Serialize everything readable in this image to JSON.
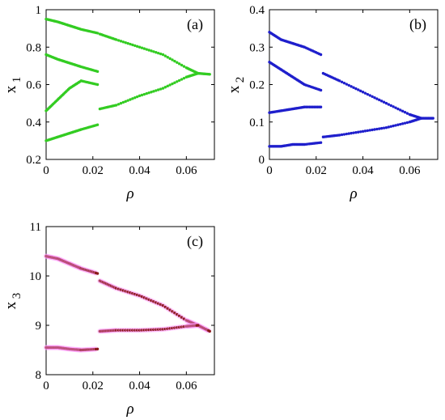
{
  "chart_data": [
    {
      "type": "scatter",
      "panel": "(a)",
      "xlabel": "ρ",
      "ylabel_main": "x",
      "ylabel_sub": "1",
      "xlim": [
        0,
        0.072
      ],
      "ylim": [
        0.2,
        1.0
      ],
      "xticks": [
        0,
        0.02,
        0.04,
        0.06
      ],
      "xtick_labels": [
        "0",
        "0.02",
        "0.04",
        "0.06"
      ],
      "yticks": [
        0.2,
        0.4,
        0.6,
        0.8,
        1.0
      ],
      "ytick_labels": [
        "0.2",
        "0.4",
        "0.6",
        "0.8",
        "1"
      ],
      "color": "#33cc22",
      "branches": {
        "period_regime_upper": [
          [
            0.0,
            0.95
          ],
          [
            0.005,
            0.935
          ],
          [
            0.01,
            0.915
          ],
          [
            0.015,
            0.895
          ],
          [
            0.022,
            0.875
          ]
        ],
        "period_regime_mid": [
          [
            0.0,
            0.76
          ],
          [
            0.005,
            0.735
          ],
          [
            0.01,
            0.715
          ],
          [
            0.015,
            0.695
          ],
          [
            0.022,
            0.67
          ]
        ],
        "period_regime_lower": [
          [
            0.0,
            0.3
          ],
          [
            0.005,
            0.32
          ],
          [
            0.01,
            0.34
          ],
          [
            0.015,
            0.36
          ],
          [
            0.022,
            0.385
          ]
        ],
        "cluster_1": [
          [
            0.0,
            0.46
          ],
          [
            0.005,
            0.52
          ],
          [
            0.01,
            0.58
          ],
          [
            0.015,
            0.62
          ],
          [
            0.022,
            0.6
          ]
        ],
        "main_upper": [
          [
            0.023,
            0.87
          ],
          [
            0.03,
            0.84
          ],
          [
            0.04,
            0.8
          ],
          [
            0.05,
            0.76
          ],
          [
            0.06,
            0.69
          ],
          [
            0.065,
            0.66
          ],
          [
            0.07,
            0.655
          ]
        ],
        "main_lower": [
          [
            0.023,
            0.47
          ],
          [
            0.03,
            0.49
          ],
          [
            0.04,
            0.54
          ],
          [
            0.05,
            0.58
          ],
          [
            0.06,
            0.64
          ],
          [
            0.065,
            0.66
          ]
        ]
      }
    },
    {
      "type": "scatter",
      "panel": "(b)",
      "xlabel": "ρ",
      "ylabel_main": "x",
      "ylabel_sub": "2",
      "xlim": [
        0,
        0.072
      ],
      "ylim": [
        0,
        0.4
      ],
      "xticks": [
        0,
        0.02,
        0.04,
        0.06
      ],
      "xtick_labels": [
        "0",
        "0.02",
        "0.04",
        "0.06"
      ],
      "yticks": [
        0,
        0.1,
        0.2,
        0.3,
        0.4
      ],
      "ytick_labels": [
        "0",
        "0.1",
        "0.2",
        "0.3",
        "0.4"
      ],
      "color": "#1f1fcc",
      "branches": {
        "band_a": [
          [
            0.0,
            0.34
          ],
          [
            0.005,
            0.32
          ],
          [
            0.01,
            0.31
          ],
          [
            0.015,
            0.3
          ],
          [
            0.022,
            0.28
          ]
        ],
        "band_b": [
          [
            0.0,
            0.26
          ],
          [
            0.005,
            0.24
          ],
          [
            0.01,
            0.22
          ],
          [
            0.015,
            0.2
          ],
          [
            0.022,
            0.185
          ]
        ],
        "band_c": [
          [
            0.0,
            0.125
          ],
          [
            0.005,
            0.13
          ],
          [
            0.01,
            0.135
          ],
          [
            0.015,
            0.14
          ],
          [
            0.022,
            0.14
          ]
        ],
        "band_d": [
          [
            0.0,
            0.035
          ],
          [
            0.005,
            0.035
          ],
          [
            0.01,
            0.04
          ],
          [
            0.015,
            0.04
          ],
          [
            0.022,
            0.045
          ]
        ],
        "main_upper": [
          [
            0.023,
            0.23
          ],
          [
            0.03,
            0.21
          ],
          [
            0.04,
            0.18
          ],
          [
            0.05,
            0.15
          ],
          [
            0.06,
            0.12
          ],
          [
            0.065,
            0.11
          ],
          [
            0.07,
            0.11
          ]
        ],
        "main_lower": [
          [
            0.023,
            0.06
          ],
          [
            0.03,
            0.065
          ],
          [
            0.04,
            0.075
          ],
          [
            0.05,
            0.085
          ],
          [
            0.06,
            0.1
          ],
          [
            0.065,
            0.11
          ]
        ]
      }
    },
    {
      "type": "scatter",
      "panel": "(c)",
      "xlabel": "ρ",
      "ylabel_main": "x",
      "ylabel_sub": "3",
      "xlim": [
        0,
        0.072
      ],
      "ylim": [
        8,
        11
      ],
      "xticks": [
        0,
        0.02,
        0.04,
        0.06
      ],
      "xtick_labels": [
        "0",
        "0.02",
        "0.04",
        "0.06"
      ],
      "yticks": [
        8,
        9,
        10,
        11
      ],
      "ytick_labels": [
        "8",
        "9",
        "10",
        "11"
      ],
      "color": "#8b1a1a",
      "halo": "#ff99ff",
      "branches": {
        "band_a": [
          [
            0.0,
            10.4
          ],
          [
            0.005,
            10.35
          ],
          [
            0.01,
            10.25
          ],
          [
            0.015,
            10.15
          ],
          [
            0.022,
            10.05
          ]
        ],
        "band_b": [
          [
            0.0,
            8.55
          ],
          [
            0.005,
            8.55
          ],
          [
            0.01,
            8.52
          ],
          [
            0.015,
            8.5
          ],
          [
            0.022,
            8.52
          ]
        ],
        "main_upper": [
          [
            0.023,
            9.9
          ],
          [
            0.03,
            9.75
          ],
          [
            0.04,
            9.6
          ],
          [
            0.05,
            9.4
          ],
          [
            0.06,
            9.1
          ],
          [
            0.065,
            9.0
          ],
          [
            0.07,
            8.88
          ]
        ],
        "main_lower": [
          [
            0.023,
            8.88
          ],
          [
            0.03,
            8.9
          ],
          [
            0.04,
            8.9
          ],
          [
            0.05,
            8.92
          ],
          [
            0.06,
            8.98
          ],
          [
            0.065,
            9.0
          ]
        ]
      }
    }
  ]
}
